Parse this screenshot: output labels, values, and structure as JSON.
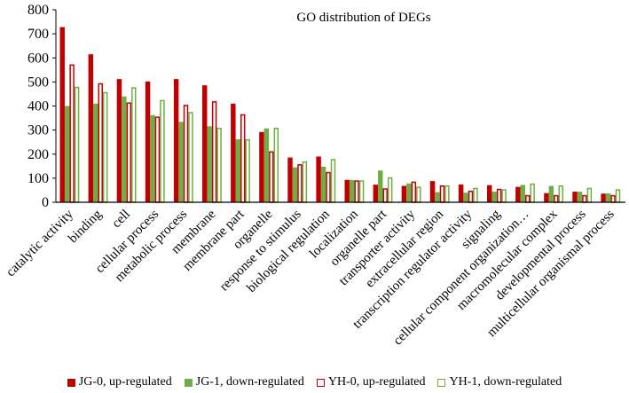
{
  "chart_data": {
    "type": "bar",
    "title": "GO distribution of DEGs",
    "xlabel": "",
    "ylabel": "",
    "ylim": [
      0,
      800
    ],
    "yticks": [
      "0",
      "100",
      "200",
      "300",
      "400",
      "500",
      "600",
      "700",
      "800"
    ],
    "categories": [
      "catalytic activity",
      "binding",
      "cell",
      "cellular process",
      "metabolic process",
      "membrane",
      "membrane part",
      "organelle",
      "response to stimulus",
      "biological regulation",
      "localization",
      "organelle part",
      "transporter activity",
      "extracellular region",
      "transcription regulator activity",
      "signaling",
      "cellular component organization…",
      "macromolecular complex",
      "developmental process",
      "multicellular organismal process"
    ],
    "series": [
      {
        "name": "JG-0, up-regulated",
        "color": "#c00000",
        "style": "filled",
        "values": [
          728,
          615,
          512,
          502,
          512,
          486,
          410,
          292,
          186,
          190,
          93,
          73,
          68,
          88,
          74,
          71,
          64,
          38,
          44,
          36
        ]
      },
      {
        "name": "JG-1, down-regulated",
        "color": "#70ad47",
        "style": "filled",
        "values": [
          400,
          410,
          440,
          362,
          334,
          316,
          262,
          307,
          145,
          148,
          93,
          132,
          78,
          42,
          40,
          44,
          72,
          68,
          44,
          37
        ]
      },
      {
        "name": "YH-0, up-regulated",
        "color": "#c00000",
        "style": "outline",
        "values": [
          573,
          495,
          415,
          356,
          405,
          420,
          366,
          212,
          158,
          126,
          91,
          58,
          86,
          70,
          48,
          56,
          30,
          30,
          30,
          30
        ]
      },
      {
        "name": "YH-1, down-regulated",
        "color": "#70ad47",
        "style": "outline",
        "values": [
          480,
          458,
          478,
          425,
          375,
          310,
          262,
          310,
          170,
          180,
          91,
          104,
          65,
          70,
          60,
          54,
          78,
          70,
          60,
          54
        ]
      }
    ],
    "legend_position": "bottom"
  }
}
